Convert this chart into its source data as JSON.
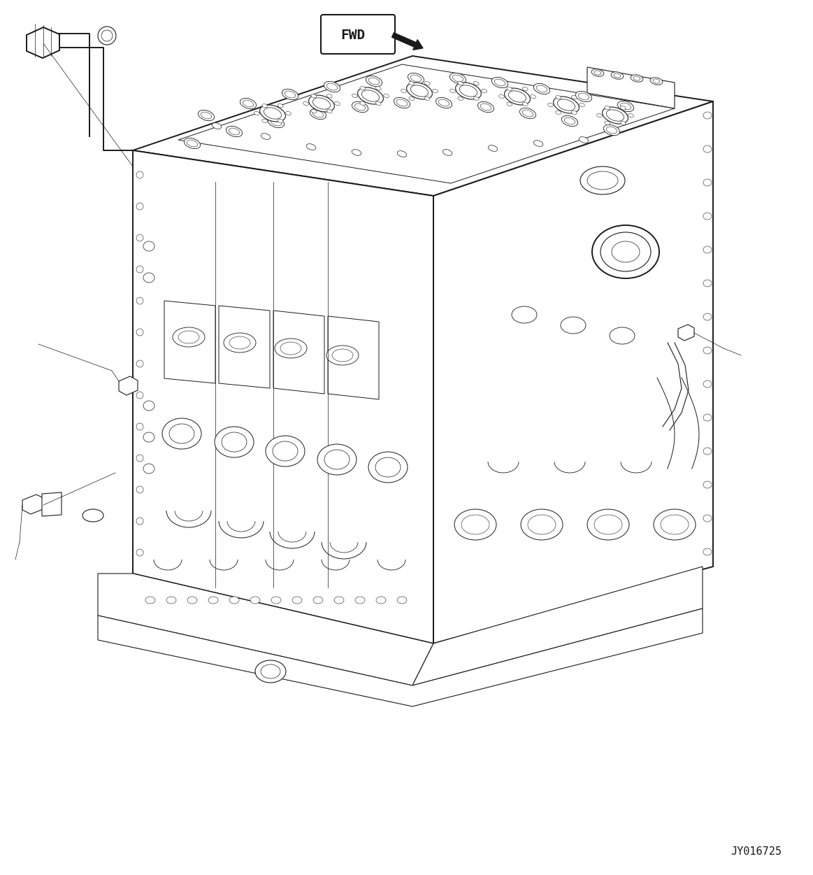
{
  "figure_width": 11.63,
  "figure_height": 12.51,
  "dpi": 100,
  "bg_color": "#ffffff",
  "line_color": "#1a1a1a",
  "line_width": 0.8,
  "thin_line": 0.5,
  "thick_line": 1.4,
  "watermark": "JY016725"
}
